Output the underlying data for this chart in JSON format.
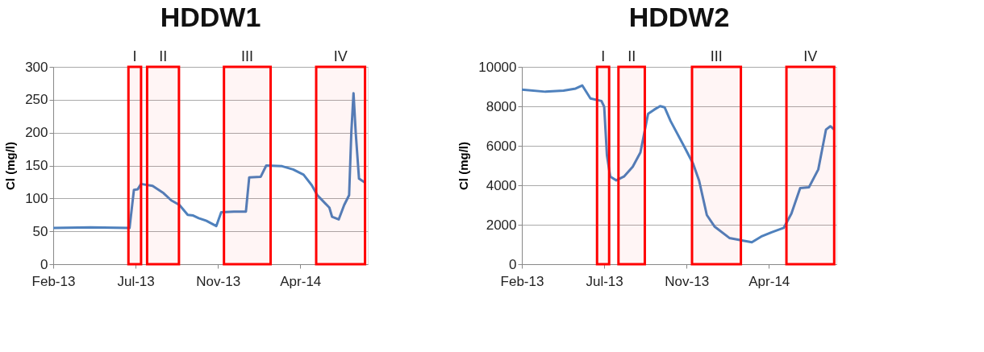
{
  "chart_data": [
    {
      "type": "line",
      "title": "HDDW1",
      "ylabel": "Cl (mg/l)",
      "x": [
        "2013-02-01",
        "2013-04-10",
        "2013-06-20",
        "2013-06-28",
        "2013-07-05",
        "2013-07-11",
        "2013-08-01",
        "2013-08-21",
        "2013-09-04",
        "2013-09-19",
        "2013-10-04",
        "2013-10-14",
        "2013-10-24",
        "2013-11-07",
        "2013-11-25",
        "2013-12-04",
        "2013-12-27",
        "2014-01-18",
        "2014-01-24",
        "2014-02-14",
        "2014-02-24",
        "2014-03-25",
        "2014-04-14",
        "2014-05-03",
        "2014-05-18",
        "2014-05-28",
        "2014-06-12",
        "2014-06-19",
        "2014-06-24",
        "2014-07-06",
        "2014-07-16",
        "2014-07-25",
        "2014-07-29",
        "2014-08-02",
        "2014-08-06",
        "2014-08-12",
        "2014-08-23"
      ],
      "series": [
        {
          "color": "#4f81bd",
          "values": [
            55,
            56,
            55,
            113,
            114,
            122,
            119,
            108,
            97,
            90,
            75,
            74,
            70,
            66,
            58,
            79,
            80,
            80,
            132,
            133,
            150,
            149,
            144,
            136,
            120,
            105,
            92,
            86,
            72,
            68,
            90,
            105,
            200,
            260,
            200,
            130,
            124
          ]
        }
      ],
      "xlim": [
        "2013-02-01",
        "2014-08-28"
      ],
      "xticks": [
        {
          "value": "2013-02-01",
          "label": "Feb-13"
        },
        {
          "value": "2013-07-01",
          "label": "Jul-13"
        },
        {
          "value": "2013-11-28",
          "label": "Nov-13"
        },
        {
          "value": "2014-04-27",
          "label": "Apr-14"
        }
      ],
      "ylim": [
        0,
        300
      ],
      "yticks": [
        0,
        50,
        100,
        150,
        200,
        250,
        300
      ],
      "grid": "y",
      "legend": false,
      "marker": "none",
      "line_style": "solid",
      "bands": [
        {
          "axis": "x",
          "from": "2013-06-18",
          "to": "2013-07-11",
          "label": "I",
          "color": "#ff0000"
        },
        {
          "axis": "x",
          "from": "2013-07-22",
          "to": "2013-09-18",
          "label": "II",
          "color": "#ff0000"
        },
        {
          "axis": "x",
          "from": "2013-12-09",
          "to": "2014-03-04",
          "label": "III",
          "color": "#ff0000"
        },
        {
          "axis": "x",
          "from": "2014-05-26",
          "to": "2014-08-23",
          "label": "IV",
          "color": "#ff0000"
        }
      ]
    },
    {
      "type": "line",
      "title": "HDDW2",
      "ylabel": "Cl (mg/l)",
      "x": [
        "2013-02-01",
        "2013-03-16",
        "2013-04-18",
        "2013-05-10",
        "2013-05-22",
        "2013-06-06",
        "2013-06-26",
        "2013-07-01",
        "2013-07-06",
        "2013-07-12",
        "2013-07-23",
        "2013-08-06",
        "2013-08-22",
        "2013-09-05",
        "2013-09-19",
        "2013-09-30",
        "2013-10-11",
        "2013-10-19",
        "2013-10-30",
        "2013-11-24",
        "2013-12-10",
        "2013-12-21",
        "2014-01-04",
        "2014-01-18",
        "2014-02-14",
        "2014-03-13",
        "2014-03-27",
        "2014-04-13",
        "2014-05-02",
        "2014-05-24",
        "2014-06-07",
        "2014-06-23",
        "2014-07-09",
        "2014-07-26",
        "2014-08-09",
        "2014-08-17",
        "2014-08-24"
      ],
      "series": [
        {
          "color": "#4f81bd",
          "values": [
            8850,
            8740,
            8800,
            8900,
            9060,
            8400,
            8270,
            7980,
            5520,
            4440,
            4250,
            4440,
            4940,
            5660,
            7620,
            7830,
            8010,
            7950,
            7250,
            5950,
            5090,
            4220,
            2490,
            1910,
            1330,
            1180,
            1110,
            1400,
            1620,
            1840,
            2560,
            3860,
            3900,
            4800,
            6820,
            6990,
            6820
          ]
        }
      ],
      "xlim": [
        "2013-02-01",
        "2014-08-28"
      ],
      "xticks": [
        {
          "value": "2013-02-01",
          "label": "Feb-13"
        },
        {
          "value": "2013-07-01",
          "label": "Jul-13"
        },
        {
          "value": "2013-11-28",
          "label": "Nov-13"
        },
        {
          "value": "2014-04-27",
          "label": "Apr-14"
        }
      ],
      "ylim": [
        0,
        10000
      ],
      "yticks": [
        0,
        2000,
        4000,
        6000,
        8000,
        10000
      ],
      "grid": "y",
      "legend": false,
      "marker": "none",
      "line_style": "solid",
      "bands": [
        {
          "axis": "x",
          "from": "2013-06-18",
          "to": "2013-07-10",
          "label": "I",
          "color": "#ff0000"
        },
        {
          "axis": "x",
          "from": "2013-07-27",
          "to": "2013-09-13",
          "label": "II",
          "color": "#ff0000"
        },
        {
          "axis": "x",
          "from": "2013-12-08",
          "to": "2014-03-07",
          "label": "III",
          "color": "#ff0000"
        },
        {
          "axis": "x",
          "from": "2014-05-29",
          "to": "2014-08-24",
          "label": "IV",
          "color": "#ff0000"
        }
      ]
    }
  ]
}
